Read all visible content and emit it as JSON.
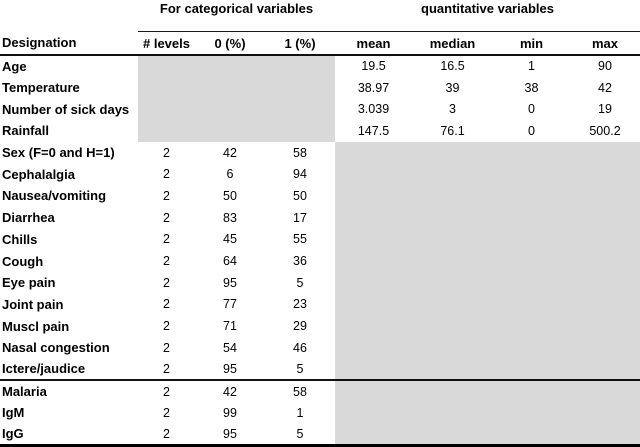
{
  "table": {
    "group_headers": {
      "categorical": "For categorical variables",
      "quantitative": "quantitative variables"
    },
    "columns": [
      "Designation",
      "# levels",
      "0 (%)",
      "1 (%)",
      "mean",
      "median",
      "min",
      "max"
    ],
    "shading_color": "#d9d9d9",
    "rows": [
      {
        "designation": "Age",
        "levels": "",
        "p0": "",
        "p1": "",
        "mean": "19.5",
        "median": "16.5",
        "min": "1",
        "max": "90",
        "shaded": "categorical",
        "divider_after": false
      },
      {
        "designation": "Temperature",
        "levels": "",
        "p0": "",
        "p1": "",
        "mean": "38.97",
        "median": "39",
        "min": "38",
        "max": "42",
        "shaded": "categorical",
        "divider_after": false
      },
      {
        "designation": "Number of sick days",
        "levels": "",
        "p0": "",
        "p1": "",
        "mean": "3.039",
        "median": "3",
        "min": "0",
        "max": "19",
        "shaded": "categorical",
        "divider_after": false
      },
      {
        "designation": "Rainfall",
        "levels": "",
        "p0": "",
        "p1": "",
        "mean": "147.5",
        "median": "76.1",
        "min": "0",
        "max": "500.2",
        "shaded": "categorical",
        "divider_after": false
      },
      {
        "designation": "Sex (F=0 and H=1)",
        "levels": "2",
        "p0": "42",
        "p1": "58",
        "mean": "",
        "median": "",
        "min": "",
        "max": "",
        "shaded": "quantitative",
        "divider_after": false
      },
      {
        "designation": "Cephalalgia",
        "levels": "2",
        "p0": "6",
        "p1": "94",
        "mean": "",
        "median": "",
        "min": "",
        "max": "",
        "shaded": "quantitative",
        "divider_after": false
      },
      {
        "designation": "Nausea/vomiting",
        "levels": "2",
        "p0": "50",
        "p1": "50",
        "mean": "",
        "median": "",
        "min": "",
        "max": "",
        "shaded": "quantitative",
        "divider_after": false
      },
      {
        "designation": "Diarrhea",
        "levels": "2",
        "p0": "83",
        "p1": "17",
        "mean": "",
        "median": "",
        "min": "",
        "max": "",
        "shaded": "quantitative",
        "divider_after": false
      },
      {
        "designation": "Chills",
        "levels": "2",
        "p0": "45",
        "p1": "55",
        "mean": "",
        "median": "",
        "min": "",
        "max": "",
        "shaded": "quantitative",
        "divider_after": false
      },
      {
        "designation": "Cough",
        "levels": "2",
        "p0": "64",
        "p1": "36",
        "mean": "",
        "median": "",
        "min": "",
        "max": "",
        "shaded": "quantitative",
        "divider_after": false
      },
      {
        "designation": "Eye pain",
        "levels": "2",
        "p0": "95",
        "p1": "5",
        "mean": "",
        "median": "",
        "min": "",
        "max": "",
        "shaded": "quantitative",
        "divider_after": false
      },
      {
        "designation": "Joint pain",
        "levels": "2",
        "p0": "77",
        "p1": "23",
        "mean": "",
        "median": "",
        "min": "",
        "max": "",
        "shaded": "quantitative",
        "divider_after": false
      },
      {
        "designation": "Muscl pain",
        "levels": "2",
        "p0": "71",
        "p1": "29",
        "mean": "",
        "median": "",
        "min": "",
        "max": "",
        "shaded": "quantitative",
        "divider_after": false
      },
      {
        "designation": "Nasal congestion",
        "levels": "2",
        "p0": "54",
        "p1": "46",
        "mean": "",
        "median": "",
        "min": "",
        "max": "",
        "shaded": "quantitative",
        "divider_after": false
      },
      {
        "designation": "Ictere/jaudice",
        "levels": "2",
        "p0": "95",
        "p1": "5",
        "mean": "",
        "median": "",
        "min": "",
        "max": "",
        "shaded": "quantitative",
        "divider_after": true
      },
      {
        "designation": "Malaria",
        "levels": "2",
        "p0": "42",
        "p1": "58",
        "mean": "",
        "median": "",
        "min": "",
        "max": "",
        "shaded": "quantitative",
        "divider_after": false
      },
      {
        "designation": "IgM",
        "levels": "2",
        "p0": "99",
        "p1": "1",
        "mean": "",
        "median": "",
        "min": "",
        "max": "",
        "shaded": "quantitative",
        "divider_after": false
      },
      {
        "designation": "IgG",
        "levels": "2",
        "p0": "95",
        "p1": "5",
        "mean": "",
        "median": "",
        "min": "",
        "max": "",
        "shaded": "quantitative",
        "divider_after": false
      }
    ]
  }
}
